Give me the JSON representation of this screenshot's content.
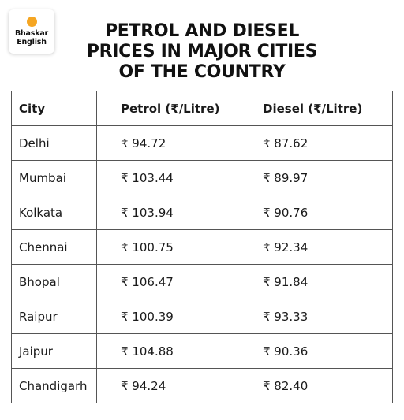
{
  "logo": {
    "line1": "Bhaskar",
    "line2": "English"
  },
  "title": {
    "line1": "PETROL AND DIESEL",
    "line2": "PRICES IN MAJOR CITIES",
    "line3": "OF THE COUNTRY"
  },
  "table": {
    "headers": [
      "City",
      "Petrol (₹/Litre)",
      "Diesel (₹/Litre)"
    ],
    "rows": [
      [
        "Delhi",
        "₹ 94.72",
        "₹ 87.62"
      ],
      [
        "Mumbai",
        "₹ 103.44",
        "₹ 89.97"
      ],
      [
        "Kolkata",
        "₹ 103.94",
        "₹ 90.76"
      ],
      [
        "Chennai",
        "₹ 100.75",
        "₹ 92.34"
      ],
      [
        "Bhopal",
        "₹ 106.47",
        "₹ 91.84"
      ],
      [
        "Raipur",
        "₹ 100.39",
        "₹ 93.33"
      ],
      [
        "Jaipur",
        "₹ 104.88",
        "₹ 90.36"
      ],
      [
        "Chandigarh",
        "₹ 94.24",
        "₹ 82.40"
      ]
    ]
  },
  "colors": {
    "logo_dot": "#f5a623",
    "border": "#555555",
    "text": "#1a1a1a"
  }
}
